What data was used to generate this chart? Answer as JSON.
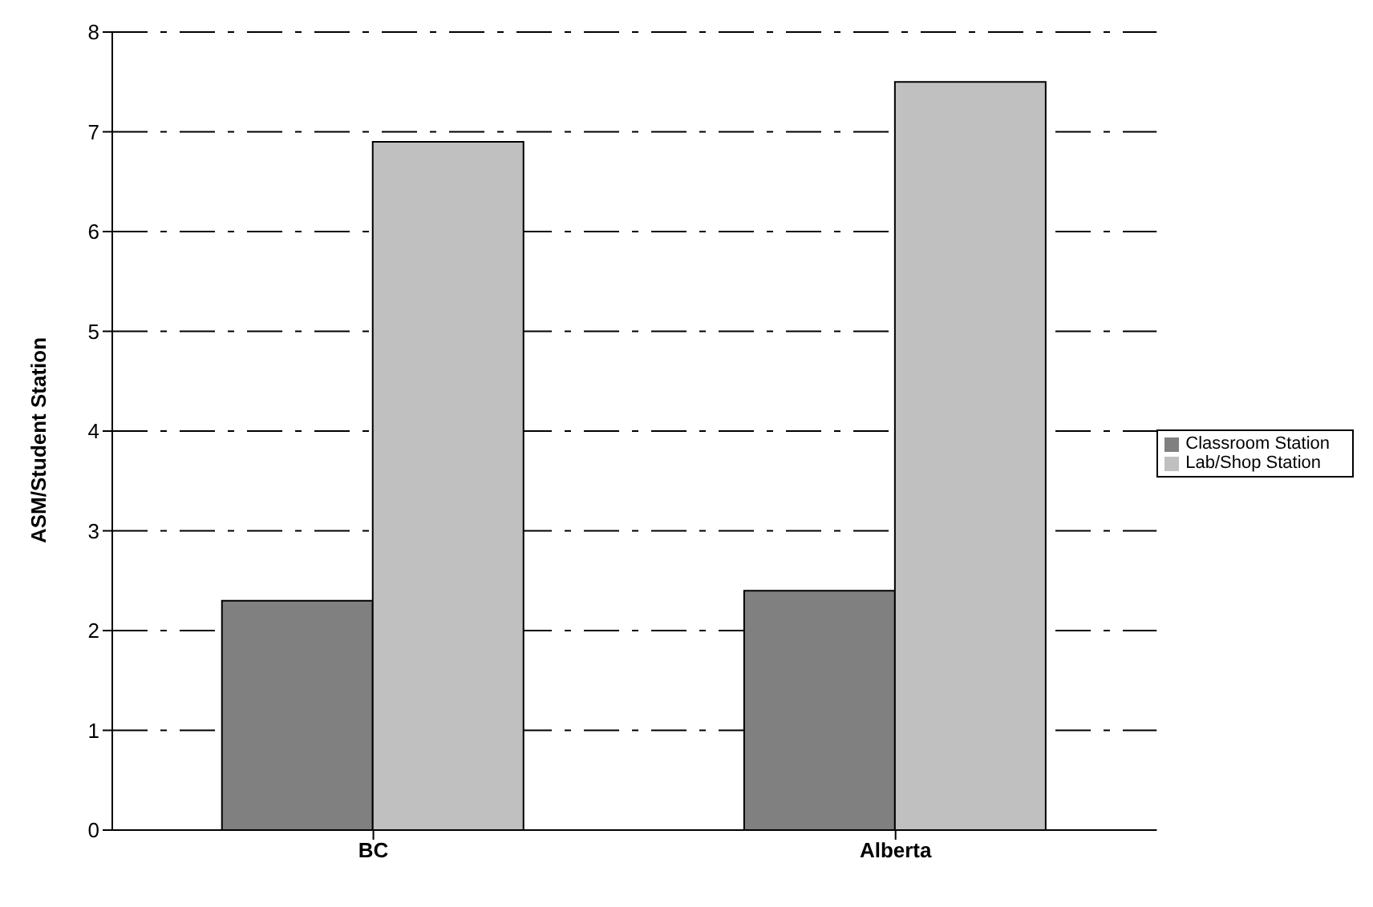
{
  "chart_data": {
    "type": "bar",
    "ylabel": "ASM/Student Station",
    "categories": [
      "BC",
      "Alberta"
    ],
    "series": [
      {
        "name": "Classroom Station",
        "color": "#808080",
        "values": [
          2.3,
          2.4
        ]
      },
      {
        "name": "Lab/Shop Station",
        "color": "#c0c0c0",
        "values": [
          6.9,
          7.5
        ]
      }
    ],
    "ylim": [
      0,
      8
    ],
    "yticks": [
      0,
      1,
      2,
      3,
      4,
      5,
      6,
      7,
      8
    ],
    "grid": "y",
    "legend": "right"
  }
}
